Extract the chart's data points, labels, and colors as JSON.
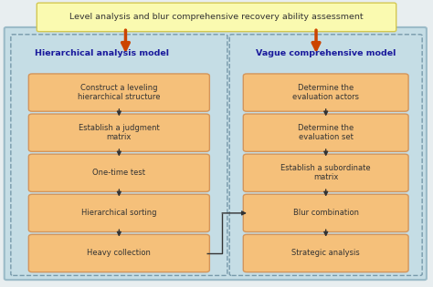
{
  "title": "Level analysis and blur comprehensive recovery ability assessment",
  "title_bg": "#FAFAB0",
  "title_border": "#D4C850",
  "title_color": "#333333",
  "outer_bg": "#C5DDE5",
  "outer_border": "#9BBBC8",
  "dashed_border": "#7799AA",
  "box_fill": "#F5C07A",
  "box_edge": "#D4955A",
  "box_text_color": "#333333",
  "header_text_color": "#1a1a9c",
  "arrow_color_orange": "#CC4400",
  "arrow_color_dark": "#333333",
  "left_header": "Hierarchical analysis model",
  "right_header": "Vague comprehensive model",
  "left_boxes": [
    "Construct a leveling\nhierarchical structure",
    "Establish a judgment\nmatrix",
    "One-time test",
    "Hierarchical sorting",
    "Heavy collection"
  ],
  "right_boxes": [
    "Determine the\nevaluation actors",
    "Determine the\nevaluation set",
    "Establish a subordinate\nmatrix",
    "Blur combination",
    "Strategic analysis"
  ],
  "figsize": [
    4.74,
    3.15
  ],
  "dpi": 100
}
